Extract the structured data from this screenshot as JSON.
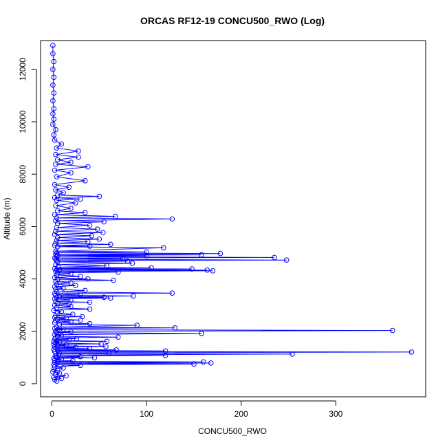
{
  "chart_data": {
    "type": "line",
    "title": "ORCAS RF12-19 CONCU500_RWO (Log)",
    "xlabel": "CONCU500_RWO",
    "ylabel": "Altitude (m)",
    "xlim": [
      -12,
      395
    ],
    "ylim": [
      -500,
      13100
    ],
    "xticks": [
      0,
      100,
      200,
      300
    ],
    "yticks": [
      0,
      2000,
      4000,
      6000,
      8000,
      10000,
      12000
    ],
    "grid": false,
    "marker": "open-circle",
    "line_color": "#0000ff",
    "series": [
      {
        "values": [
          [
            5,
            100
          ],
          [
            3,
            150
          ],
          [
            10,
            200
          ],
          [
            2,
            250
          ],
          [
            15,
            300
          ],
          [
            4,
            350
          ],
          [
            8,
            400
          ],
          [
            1,
            450
          ],
          [
            6,
            500
          ],
          [
            2,
            550
          ],
          [
            12,
            600
          ],
          [
            3,
            650
          ],
          [
            30,
            700
          ],
          [
            2,
            720
          ],
          [
            150,
            750
          ],
          [
            5,
            770
          ],
          [
            168,
            790
          ],
          [
            3,
            810
          ],
          [
            160,
            830
          ],
          [
            6,
            850
          ],
          [
            22,
            870
          ],
          [
            3,
            900
          ],
          [
            10,
            930
          ],
          [
            2,
            960
          ],
          [
            45,
            990
          ],
          [
            5,
            1010
          ],
          [
            30,
            1030
          ],
          [
            4,
            1050
          ],
          [
            120,
            1080
          ],
          [
            7,
            1100
          ],
          [
            254,
            1130
          ],
          [
            4,
            1150
          ],
          [
            60,
            1170
          ],
          [
            8,
            1180
          ],
          [
            380,
            1210
          ],
          [
            3,
            1230
          ],
          [
            120,
            1250
          ],
          [
            6,
            1270
          ],
          [
            68,
            1290
          ],
          [
            2,
            1310
          ],
          [
            40,
            1340
          ],
          [
            5,
            1360
          ],
          [
            25,
            1380
          ],
          [
            3,
            1400
          ],
          [
            57,
            1420
          ],
          [
            6,
            1450
          ],
          [
            15,
            1480
          ],
          [
            2,
            1500
          ],
          [
            52,
            1520
          ],
          [
            4,
            1550
          ],
          [
            8,
            1580
          ],
          [
            2,
            1600
          ],
          [
            58,
            1620
          ],
          [
            5,
            1650
          ],
          [
            18,
            1680
          ],
          [
            3,
            1700
          ],
          [
            26,
            1720
          ],
          [
            4,
            1750
          ],
          [
            70,
            1780
          ],
          [
            6,
            1810
          ],
          [
            10,
            1840
          ],
          [
            3,
            1870
          ],
          [
            158,
            1920
          ],
          [
            5,
            1950
          ],
          [
            20,
            1980
          ],
          [
            4,
            2000
          ],
          [
            360,
            2030
          ],
          [
            6,
            2060
          ],
          [
            12,
            2090
          ],
          [
            3,
            2110
          ],
          [
            130,
            2130
          ],
          [
            5,
            2160
          ],
          [
            90,
            2230
          ],
          [
            8,
            2260
          ],
          [
            40,
            2290
          ],
          [
            3,
            2320
          ],
          [
            20,
            2360
          ],
          [
            4,
            2400
          ],
          [
            30,
            2430
          ],
          [
            6,
            2460
          ],
          [
            15,
            2500
          ],
          [
            3,
            2530
          ],
          [
            32,
            2560
          ],
          [
            4,
            2600
          ],
          [
            22,
            2650
          ],
          [
            6,
            2700
          ],
          [
            10,
            2750
          ],
          [
            2,
            2800
          ],
          [
            40,
            2850
          ],
          [
            5,
            2900
          ],
          [
            20,
            2950
          ],
          [
            3,
            3000
          ],
          [
            18,
            3050
          ],
          [
            6,
            3080
          ],
          [
            40,
            3110
          ],
          [
            4,
            3140
          ],
          [
            20,
            3200
          ],
          [
            3,
            3240
          ],
          [
            62,
            3270
          ],
          [
            5,
            3290
          ],
          [
            55,
            3300
          ],
          [
            8,
            3320
          ],
          [
            86,
            3350
          ],
          [
            4,
            3380
          ],
          [
            30,
            3420
          ],
          [
            3,
            3440
          ],
          [
            127,
            3460
          ],
          [
            5,
            3500
          ],
          [
            35,
            3560
          ],
          [
            4,
            3600
          ],
          [
            12,
            3650
          ],
          [
            3,
            3700
          ],
          [
            25,
            3750
          ],
          [
            5,
            3800
          ],
          [
            20,
            3850
          ],
          [
            4,
            3900
          ],
          [
            65,
            3950
          ],
          [
            6,
            3990
          ],
          [
            38,
            4000
          ],
          [
            3,
            4050
          ],
          [
            30,
            4100
          ],
          [
            5,
            4150
          ],
          [
            20,
            4200
          ],
          [
            6,
            4230
          ],
          [
            70,
            4260
          ],
          [
            4,
            4290
          ],
          [
            170,
            4310
          ],
          [
            8,
            4330
          ],
          [
            164,
            4340
          ],
          [
            5,
            4360
          ],
          [
            148,
            4380
          ],
          [
            3,
            4400
          ],
          [
            105,
            4420
          ],
          [
            7,
            4450
          ],
          [
            58,
            4500
          ],
          [
            4,
            4550
          ],
          [
            85,
            4600
          ],
          [
            6,
            4650
          ],
          [
            80,
            4680
          ],
          [
            5,
            4700
          ],
          [
            248,
            4720
          ],
          [
            4,
            4750
          ],
          [
            75,
            4780
          ],
          [
            3,
            4800
          ],
          [
            235,
            4820
          ],
          [
            5,
            4850
          ],
          [
            100,
            4880
          ],
          [
            6,
            4900
          ],
          [
            158,
            4920
          ],
          [
            4,
            4940
          ],
          [
            178,
            4970
          ],
          [
            5,
            5000
          ],
          [
            100,
            5030
          ],
          [
            4,
            5060
          ],
          [
            118,
            5190
          ],
          [
            6,
            5230
          ],
          [
            40,
            5250
          ],
          [
            3,
            5280
          ],
          [
            62,
            5320
          ],
          [
            4,
            5360
          ],
          [
            38,
            5420
          ],
          [
            5,
            5470
          ],
          [
            50,
            5520
          ],
          [
            6,
            5580
          ],
          [
            42,
            5650
          ],
          [
            3,
            5700
          ],
          [
            54,
            5770
          ],
          [
            4,
            5820
          ],
          [
            48,
            5900
          ],
          [
            5,
            5960
          ],
          [
            40,
            6050
          ],
          [
            6,
            6120
          ],
          [
            55,
            6180
          ],
          [
            4,
            6220
          ],
          [
            127,
            6290
          ],
          [
            5,
            6330
          ],
          [
            67,
            6390
          ],
          [
            3,
            6450
          ],
          [
            35,
            6530
          ],
          [
            6,
            6600
          ],
          [
            20,
            6700
          ],
          [
            4,
            6800
          ],
          [
            25,
            6900
          ],
          [
            5,
            7000
          ],
          [
            30,
            7050
          ],
          [
            3,
            7100
          ],
          [
            50,
            7150
          ],
          [
            6,
            7200
          ],
          [
            12,
            7300
          ],
          [
            4,
            7400
          ],
          [
            18,
            7500
          ],
          [
            3,
            7600
          ],
          [
            35,
            7750
          ],
          [
            5,
            7900
          ],
          [
            20,
            8050
          ],
          [
            3,
            8150
          ],
          [
            38,
            8280
          ],
          [
            4,
            8380
          ],
          [
            20,
            8450
          ],
          [
            6,
            8550
          ],
          [
            28,
            8650
          ],
          [
            4,
            8750
          ],
          [
            28,
            8880
          ],
          [
            5,
            9000
          ],
          [
            10,
            9150
          ],
          [
            3,
            9300
          ],
          [
            2,
            9500
          ],
          [
            4,
            9700
          ],
          [
            1,
            9900
          ],
          [
            2,
            10100
          ],
          [
            1,
            10300
          ],
          [
            2,
            10500
          ],
          [
            1,
            10800
          ],
          [
            2,
            11100
          ],
          [
            1,
            11400
          ],
          [
            2,
            11700
          ],
          [
            1,
            12000
          ],
          [
            2,
            12300
          ],
          [
            1,
            12600
          ],
          [
            1,
            12920
          ]
        ]
      }
    ]
  }
}
